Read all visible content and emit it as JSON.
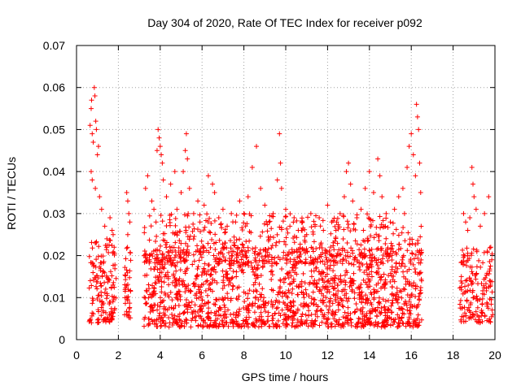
{
  "chart_data": {
    "type": "scatter",
    "title": "Day 304 of 2020, Rate Of TEC Index for receiver p092",
    "xlabel": "GPS time / hours",
    "ylabel": "ROTI / TECUs",
    "xlim": [
      0,
      20
    ],
    "ylim": [
      0,
      0.07
    ],
    "x_ticks": [
      "0",
      "2",
      "4",
      "6",
      "8",
      "10",
      "12",
      "14",
      "16",
      "18",
      "20"
    ],
    "y_ticks": [
      "0",
      "0.01",
      "0.02",
      "0.03",
      "0.04",
      "0.05",
      "0.06",
      "0.07"
    ],
    "grid": true,
    "marker": "+",
    "series_color": "#ff0000",
    "series": [
      {
        "name": "ROTI",
        "points": [
          [
            0.65,
            0.051
          ],
          [
            0.7,
            0.055
          ],
          [
            0.72,
            0.057
          ],
          [
            0.75,
            0.049
          ],
          [
            0.8,
            0.047
          ],
          [
            0.85,
            0.06
          ],
          [
            0.88,
            0.058
          ],
          [
            0.92,
            0.052
          ],
          [
            0.95,
            0.05
          ],
          [
            1.0,
            0.044
          ],
          [
            1.05,
            0.046
          ],
          [
            0.7,
            0.04
          ],
          [
            0.75,
            0.038
          ],
          [
            0.9,
            0.036
          ],
          [
            1.1,
            0.034
          ],
          [
            1.2,
            0.031
          ],
          [
            1.35,
            0.027
          ],
          [
            1.45,
            0.024
          ],
          [
            1.6,
            0.029
          ],
          [
            1.7,
            0.026
          ],
          [
            1.8,
            0.022
          ],
          [
            1.75,
            0.025
          ],
          [
            2.4,
            0.035
          ],
          [
            2.45,
            0.033
          ],
          [
            2.5,
            0.03
          ],
          [
            2.55,
            0.028
          ],
          [
            2.45,
            0.025
          ],
          [
            3.3,
            0.036
          ],
          [
            3.4,
            0.039
          ],
          [
            3.6,
            0.033
          ],
          [
            3.7,
            0.031
          ],
          [
            3.8,
            0.028
          ],
          [
            3.85,
            0.045
          ],
          [
            3.9,
            0.05
          ],
          [
            3.95,
            0.048
          ],
          [
            4.0,
            0.046
          ],
          [
            4.05,
            0.044
          ],
          [
            4.1,
            0.042
          ],
          [
            4.15,
            0.038
          ],
          [
            4.3,
            0.034
          ],
          [
            4.5,
            0.037
          ],
          [
            4.7,
            0.04
          ],
          [
            4.8,
            0.031
          ],
          [
            5.0,
            0.035
          ],
          [
            5.1,
            0.04
          ],
          [
            5.2,
            0.045
          ],
          [
            5.25,
            0.049
          ],
          [
            5.3,
            0.043
          ],
          [
            5.4,
            0.036
          ],
          [
            5.6,
            0.03
          ],
          [
            5.8,
            0.033
          ],
          [
            5.9,
            0.028
          ],
          [
            6.1,
            0.032
          ],
          [
            6.3,
            0.039
          ],
          [
            6.5,
            0.037
          ],
          [
            6.6,
            0.035
          ],
          [
            6.8,
            0.029
          ],
          [
            7.0,
            0.031
          ],
          [
            7.2,
            0.027
          ],
          [
            7.4,
            0.03
          ],
          [
            7.6,
            0.028
          ],
          [
            7.8,
            0.033
          ],
          [
            8.0,
            0.03
          ],
          [
            8.2,
            0.034
          ],
          [
            8.4,
            0.041
          ],
          [
            8.6,
            0.046
          ],
          [
            8.8,
            0.036
          ],
          [
            9.0,
            0.032
          ],
          [
            9.2,
            0.028
          ],
          [
            9.4,
            0.03
          ],
          [
            9.6,
            0.038
          ],
          [
            9.7,
            0.049
          ],
          [
            9.75,
            0.042
          ],
          [
            9.8,
            0.036
          ],
          [
            10.0,
            0.031
          ],
          [
            10.2,
            0.027
          ],
          [
            10.4,
            0.029
          ],
          [
            10.6,
            0.026
          ],
          [
            10.8,
            0.028
          ],
          [
            11.0,
            0.025
          ],
          [
            11.2,
            0.03
          ],
          [
            11.4,
            0.027
          ],
          [
            11.6,
            0.029
          ],
          [
            11.8,
            0.026
          ],
          [
            12.0,
            0.032
          ],
          [
            12.2,
            0.028
          ],
          [
            12.4,
            0.026
          ],
          [
            12.6,
            0.03
          ],
          [
            12.8,
            0.034
          ],
          [
            12.9,
            0.04
          ],
          [
            13.0,
            0.042
          ],
          [
            13.1,
            0.037
          ],
          [
            13.2,
            0.033
          ],
          [
            13.4,
            0.029
          ],
          [
            13.6,
            0.031
          ],
          [
            13.8,
            0.036
          ],
          [
            14.0,
            0.04
          ],
          [
            14.2,
            0.035
          ],
          [
            14.4,
            0.043
          ],
          [
            14.5,
            0.039
          ],
          [
            14.6,
            0.034
          ],
          [
            14.8,
            0.03
          ],
          [
            15.0,
            0.028
          ],
          [
            15.2,
            0.031
          ],
          [
            15.4,
            0.034
          ],
          [
            15.6,
            0.036
          ],
          [
            15.8,
            0.041
          ],
          [
            15.9,
            0.046
          ],
          [
            16.0,
            0.049
          ],
          [
            16.1,
            0.044
          ],
          [
            16.2,
            0.039
          ],
          [
            16.25,
            0.056
          ],
          [
            16.3,
            0.053
          ],
          [
            16.35,
            0.05
          ],
          [
            16.4,
            0.042
          ],
          [
            16.45,
            0.035
          ],
          [
            18.5,
            0.03
          ],
          [
            18.6,
            0.028
          ],
          [
            18.7,
            0.026
          ],
          [
            18.8,
            0.029
          ],
          [
            18.9,
            0.041
          ],
          [
            18.95,
            0.037
          ],
          [
            19.0,
            0.034
          ],
          [
            19.1,
            0.031
          ],
          [
            19.3,
            0.027
          ],
          [
            19.5,
            0.03
          ],
          [
            19.7,
            0.034
          ],
          [
            19.8,
            0.022
          ],
          [
            19.85,
            0.019
          ]
        ]
      }
    ],
    "dense_segments": [
      {
        "x_start": 0.6,
        "x_end": 1.9,
        "y_min": 0.004,
        "y_max": 0.024,
        "count": 150
      },
      {
        "x_start": 2.3,
        "x_end": 2.6,
        "y_min": 0.005,
        "y_max": 0.022,
        "count": 40
      },
      {
        "x_start": 3.2,
        "x_end": 16.5,
        "y_min": 0.003,
        "y_max": 0.022,
        "count": 1500
      },
      {
        "x_start": 3.2,
        "x_end": 16.5,
        "y_min": 0.018,
        "y_max": 0.03,
        "count": 450
      },
      {
        "x_start": 18.3,
        "x_end": 19.9,
        "y_min": 0.004,
        "y_max": 0.022,
        "count": 160
      }
    ]
  }
}
